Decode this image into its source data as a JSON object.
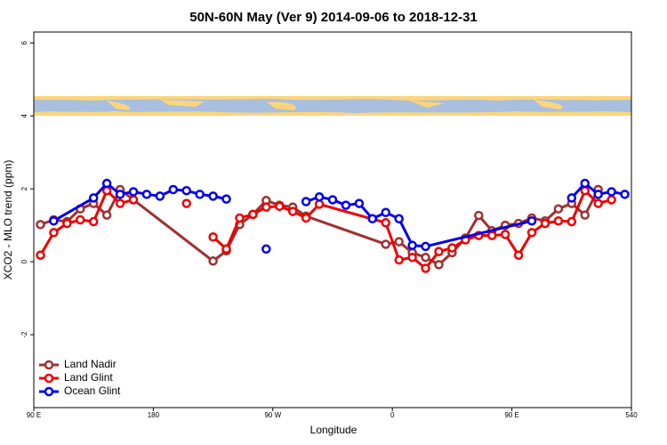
{
  "chart_data": {
    "type": "line",
    "title": "50N-60N May (Ver 9)   2014-09-06 to 2018-12-31",
    "xlabel": "Longitude",
    "ylabel": "XCO2 - MLO trend (ppm)",
    "xlim": [
      90,
      540
    ],
    "ylim": [
      -4,
      6.3
    ],
    "xticks": [
      {
        "value": 90,
        "label": "90 E"
      },
      180,
      {
        "value": 270,
        "label": "90 W"
      },
      {
        "value": 360,
        "label": "0"
      },
      {
        "value": 450,
        "label": "90 E"
      },
      540
    ],
    "yticks": [
      -2,
      0,
      2,
      4,
      6
    ],
    "legend": "bottom-left",
    "series": [
      {
        "name": "Land Nadir",
        "color": "#a03030",
        "x": [
          95,
          105,
          115,
          125,
          135,
          145,
          155,
          225,
          235,
          245,
          255,
          265,
          275,
          285,
          295,
          355,
          365,
          375,
          385,
          395,
          405,
          415,
          425,
          435,
          445,
          455,
          465,
          475,
          485,
          495,
          505,
          515
        ],
        "values": [
          1.02,
          1.15,
          1.1,
          1.45,
          1.6,
          1.28,
          1.98,
          0.02,
          0.3,
          1.02,
          1.3,
          1.68,
          1.55,
          1.5,
          1.25,
          0.48,
          0.55,
          0.25,
          0.12,
          -0.08,
          0.25,
          0.65,
          1.27,
          0.85,
          1.0,
          1.05,
          1.2,
          1.12,
          1.45,
          1.6,
          1.28,
          1.98
        ]
      },
      {
        "name": "Land Glint",
        "color": "#ee0000",
        "x": [
          95,
          105,
          115,
          125,
          135,
          145,
          155,
          165,
          175,
          205,
          215,
          225,
          235,
          245,
          255,
          265,
          275,
          285,
          295,
          305,
          355,
          365,
          375,
          385,
          395,
          405,
          415,
          425,
          435,
          445,
          455,
          465,
          475,
          485,
          495,
          505,
          515,
          525
        ],
        "values": [
          0.18,
          0.8,
          1.05,
          1.15,
          1.1,
          1.95,
          1.6,
          1.7,
          null,
          1.6,
          null,
          0.68,
          0.35,
          1.2,
          1.3,
          1.5,
          1.52,
          1.38,
          1.2,
          1.58,
          1.07,
          0.05,
          0.12,
          -0.18,
          0.28,
          0.38,
          0.6,
          0.72,
          0.72,
          0.75,
          0.18,
          0.8,
          1.05,
          1.12,
          1.1,
          1.95,
          1.6,
          1.7
        ]
      },
      {
        "name": "Ocean Glint",
        "color": "#0000ee",
        "x": [
          105,
          135,
          145,
          155,
          165,
          175,
          185,
          195,
          205,
          215,
          225,
          235,
          245,
          265,
          285,
          295,
          305,
          315,
          325,
          335,
          345,
          355,
          365,
          375,
          385,
          465,
          475,
          485,
          495,
          505,
          515,
          525,
          535
        ],
        "values": [
          1.12,
          1.75,
          2.15,
          1.85,
          1.92,
          1.85,
          1.8,
          1.98,
          1.95,
          1.85,
          1.8,
          1.72,
          null,
          0.35,
          null,
          1.65,
          1.78,
          1.7,
          1.55,
          1.6,
          1.18,
          1.35,
          1.18,
          0.45,
          0.42,
          1.12,
          null,
          null,
          1.75,
          2.15,
          1.85,
          1.92,
          1.85
        ]
      }
    ]
  }
}
